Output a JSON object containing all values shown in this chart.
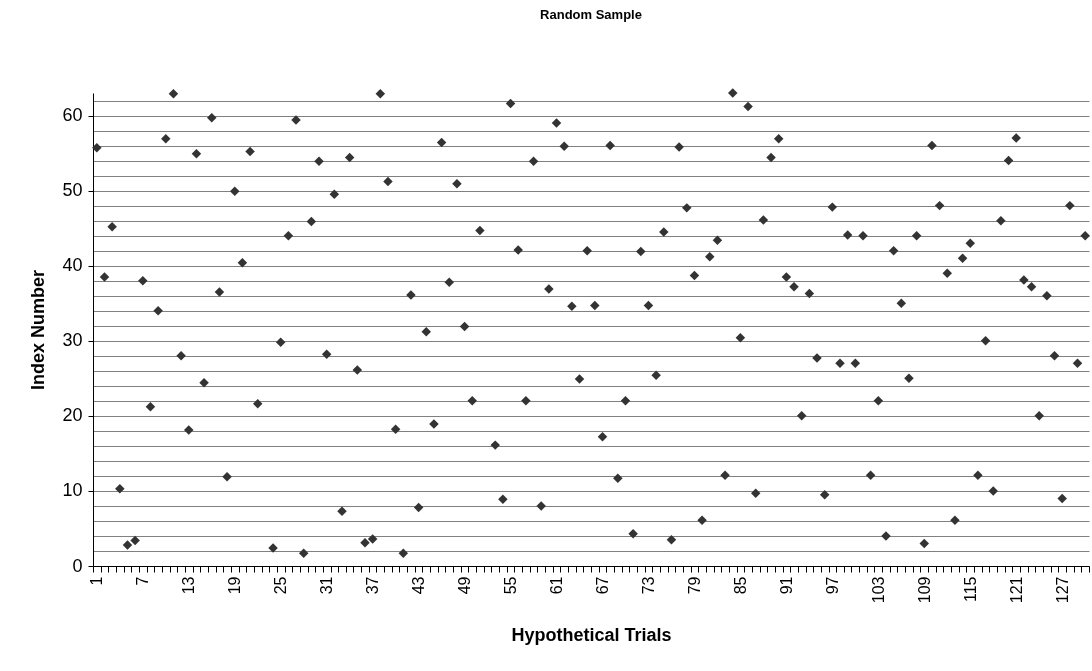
{
  "chart_data": {
    "type": "scatter",
    "title": "Random Sample",
    "xlabel": "Hypothetical Trials",
    "ylabel": "Index Number",
    "categories": [
      "1",
      null,
      null,
      null,
      null,
      null,
      "7",
      null,
      null,
      null,
      null,
      null,
      "13",
      null,
      null,
      null,
      null,
      null,
      "19",
      null,
      null,
      null,
      null,
      null,
      "25",
      null,
      null,
      null,
      null,
      null,
      "31",
      null,
      null,
      null,
      null,
      null,
      "37",
      null,
      null,
      null,
      null,
      null,
      "43",
      null,
      null,
      null,
      null,
      null,
      "49",
      null,
      null,
      null,
      null,
      null,
      "55",
      null,
      null,
      null,
      null,
      null,
      "61",
      null,
      null,
      null,
      null,
      null,
      "67",
      null,
      null,
      null,
      null,
      null,
      "73",
      null,
      null,
      null,
      null,
      null,
      "79",
      null,
      null,
      null,
      null,
      null,
      "85",
      null,
      null,
      null,
      null,
      null,
      "91",
      null,
      null,
      null,
      null,
      null,
      "97",
      null,
      null,
      null,
      null,
      null,
      "103",
      null,
      null,
      null,
      null,
      null,
      "109",
      null,
      null,
      null,
      null,
      null,
      "115",
      null,
      null,
      null,
      null,
      null,
      "121",
      null,
      null,
      null,
      null,
      null,
      "127",
      null,
      null,
      null
    ],
    "series": [
      {
        "color": "#333333",
        "values": [
          55.7,
          38.5,
          45.2,
          10.3,
          2.8,
          3.4,
          38.0,
          21.2,
          34.0,
          56.9,
          62.9,
          28.0,
          18.1,
          54.9,
          24.4,
          59.7,
          36.5,
          11.9,
          49.9,
          40.4,
          55.2,
          21.6,
          null,
          2.4,
          29.8,
          44.0,
          59.4,
          1.7,
          45.9,
          53.9,
          28.2,
          49.5,
          7.3,
          54.4,
          26.1,
          3.1,
          3.6,
          62.9,
          51.2,
          18.2,
          1.7,
          36.1,
          7.8,
          31.2,
          18.9,
          56.4,
          37.8,
          50.9,
          31.9,
          22.0,
          44.7,
          null,
          16.1,
          8.9,
          61.6,
          42.1,
          22.0,
          53.9,
          8.0,
          36.9,
          59.0,
          55.9,
          34.6,
          24.9,
          42.0,
          34.7,
          17.2,
          56.0,
          11.7,
          22.0,
          4.3,
          41.9,
          34.7,
          25.4,
          44.5,
          3.5,
          55.8,
          47.7,
          38.7,
          6.1,
          41.2,
          43.4,
          12.1,
          63.0,
          30.4,
          61.2,
          9.7,
          46.1,
          54.4,
          56.9,
          38.5,
          37.2,
          20.0,
          36.3,
          27.7,
          9.5,
          47.8,
          27.0,
          44.1,
          27.0,
          44.0,
          12.1,
          22.0,
          4.0,
          42.0,
          35.0,
          25.0,
          44.0,
          3.0,
          56.0,
          48.0,
          39.0,
          6.1,
          41.0,
          43.0,
          12.1,
          30.0,
          10.0,
          46.0,
          54.0,
          57.0,
          38.1,
          37.2,
          20.0,
          36.0,
          28.0,
          9.0,
          48.0,
          27.0,
          44.0
        ]
      }
    ],
    "ylim": [
      0,
      63
    ],
    "yticks": [
      0,
      {
        "value": 2,
        "label": null
      },
      {
        "value": 4,
        "label": null
      },
      {
        "value": 6,
        "label": null
      },
      {
        "value": 8,
        "label": null
      },
      10,
      {
        "value": 12,
        "label": null
      },
      {
        "value": 14,
        "label": null
      },
      {
        "value": 16,
        "label": null
      },
      {
        "value": 18,
        "label": null
      },
      20,
      {
        "value": 22,
        "label": null
      },
      {
        "value": 24,
        "label": null
      },
      {
        "value": 26,
        "label": null
      },
      {
        "value": 28,
        "label": null
      },
      30,
      {
        "value": 32,
        "label": null
      },
      {
        "value": 34,
        "label": null
      },
      {
        "value": 36,
        "label": null
      },
      {
        "value": 38,
        "label": null
      },
      40,
      {
        "value": 42,
        "label": null
      },
      {
        "value": 44,
        "label": null
      },
      {
        "value": 46,
        "label": null
      },
      {
        "value": 48,
        "label": null
      },
      50,
      {
        "value": 52,
        "label": null
      },
      {
        "value": 54,
        "label": null
      },
      {
        "value": 56,
        "label": null
      },
      {
        "value": 58,
        "label": null
      },
      60,
      {
        "value": 62,
        "label": null
      }
    ],
    "grid": "y",
    "marker": "diamond"
  }
}
